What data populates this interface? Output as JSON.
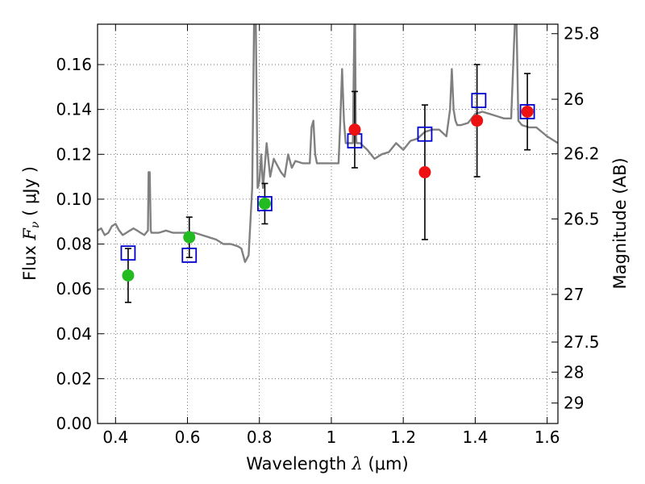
{
  "chart_data": {
    "type": "scatter",
    "xlabel": {
      "prefix": "Wavelength  ",
      "symbol": "λ",
      "unit": " (μm)"
    },
    "ylabel": {
      "prefix": "Flux  ",
      "symbol": "F",
      "subscript": "ν",
      "unit": "  ( μJy )"
    },
    "y2label": "Magnitude (AB)",
    "xlim": [
      0.35,
      1.63
    ],
    "ylim": [
      0.0,
      0.178
    ],
    "grid": true,
    "x_ticks": [
      {
        "value": 0.4,
        "label": "0.4"
      },
      {
        "value": 0.6,
        "label": "0.6"
      },
      {
        "value": 0.8,
        "label": "0.8"
      },
      {
        "value": 1.0,
        "label": "1"
      },
      {
        "value": 1.2,
        "label": "1.2"
      },
      {
        "value": 1.4,
        "label": "1.4"
      },
      {
        "value": 1.6,
        "label": "1.6"
      }
    ],
    "y_ticks": [
      {
        "value": 0.0,
        "label": "0.00"
      },
      {
        "value": 0.02,
        "label": "0.02"
      },
      {
        "value": 0.04,
        "label": "0.04"
      },
      {
        "value": 0.06,
        "label": "0.06"
      },
      {
        "value": 0.08,
        "label": "0.08"
      },
      {
        "value": 0.1,
        "label": "0.10"
      },
      {
        "value": 0.12,
        "label": "0.12"
      },
      {
        "value": 0.14,
        "label": "0.14"
      },
      {
        "value": 0.16,
        "label": "0.16"
      }
    ],
    "y2_ticks": [
      {
        "mag": 25.8,
        "label": "25.8"
      },
      {
        "mag": 26,
        "label": "26"
      },
      {
        "mag": 26.2,
        "label": "26.2"
      },
      {
        "mag": 26.5,
        "label": "26.5"
      },
      {
        "mag": 27,
        "label": "27"
      },
      {
        "mag": 27.5,
        "label": "27.5"
      },
      {
        "mag": 28,
        "label": "28"
      },
      {
        "mag": 29,
        "label": "29"
      }
    ],
    "series": [
      {
        "kind": "line",
        "color": "#808080",
        "x": [
          0.35,
          0.36,
          0.37,
          0.38,
          0.39,
          0.4,
          0.41,
          0.42,
          0.43,
          0.44,
          0.45,
          0.46,
          0.47,
          0.48,
          0.49,
          0.492,
          0.495,
          0.498,
          0.5,
          0.52,
          0.54,
          0.56,
          0.58,
          0.6,
          0.62,
          0.64,
          0.66,
          0.68,
          0.7,
          0.72,
          0.74,
          0.75,
          0.76,
          0.77,
          0.775,
          0.78,
          0.785,
          0.79,
          0.795,
          0.8,
          0.805,
          0.81,
          0.82,
          0.83,
          0.84,
          0.85,
          0.86,
          0.87,
          0.88,
          0.89,
          0.9,
          0.92,
          0.94,
          0.945,
          0.95,
          0.955,
          0.96,
          0.98,
          1.0,
          1.02,
          1.025,
          1.03,
          1.035,
          1.04,
          1.06,
          1.064,
          1.066,
          1.068,
          1.07,
          1.08,
          1.1,
          1.12,
          1.14,
          1.16,
          1.18,
          1.2,
          1.22,
          1.24,
          1.26,
          1.28,
          1.3,
          1.32,
          1.33,
          1.335,
          1.34,
          1.345,
          1.35,
          1.36,
          1.38,
          1.4,
          1.42,
          1.44,
          1.46,
          1.48,
          1.5,
          1.51,
          1.515,
          1.52,
          1.53,
          1.55,
          1.57,
          1.6,
          1.63
        ],
        "y": [
          0.086,
          0.087,
          0.084,
          0.085,
          0.088,
          0.089,
          0.086,
          0.084,
          0.085,
          0.086,
          0.087,
          0.086,
          0.085,
          0.084,
          0.086,
          0.112,
          0.112,
          0.086,
          0.085,
          0.085,
          0.086,
          0.085,
          0.085,
          0.085,
          0.085,
          0.084,
          0.083,
          0.082,
          0.08,
          0.08,
          0.079,
          0.078,
          0.072,
          0.075,
          0.09,
          0.105,
          0.178,
          0.178,
          0.105,
          0.108,
          0.12,
          0.105,
          0.125,
          0.11,
          0.118,
          0.115,
          0.112,
          0.11,
          0.12,
          0.114,
          0.117,
          0.116,
          0.116,
          0.132,
          0.135,
          0.12,
          0.116,
          0.116,
          0.116,
          0.116,
          0.135,
          0.158,
          0.135,
          0.125,
          0.125,
          0.178,
          0.178,
          0.13,
          0.125,
          0.125,
          0.122,
          0.118,
          0.12,
          0.121,
          0.125,
          0.122,
          0.126,
          0.127,
          0.13,
          0.131,
          0.131,
          0.128,
          0.14,
          0.158,
          0.14,
          0.135,
          0.133,
          0.133,
          0.134,
          0.138,
          0.139,
          0.138,
          0.137,
          0.136,
          0.136,
          0.178,
          0.178,
          0.135,
          0.133,
          0.132,
          0.132,
          0.128,
          0.125
        ]
      },
      {
        "kind": "squares",
        "color": "#0000cc",
        "x": [
          0.435,
          0.605,
          0.815,
          1.065,
          1.26,
          1.41,
          1.545
        ],
        "y": [
          0.076,
          0.075,
          0.098,
          0.126,
          0.129,
          0.144,
          0.139
        ]
      },
      {
        "kind": "points",
        "color": "#22bb22",
        "x": [
          0.435,
          0.605,
          0.815
        ],
        "y": [
          0.066,
          0.083,
          0.098
        ],
        "err": [
          0.012,
          0.009,
          0.009
        ]
      },
      {
        "kind": "points",
        "color": "#ee1111",
        "x": [
          1.065,
          1.26,
          1.405,
          1.545
        ],
        "y": [
          0.131,
          0.112,
          0.135,
          0.139
        ],
        "err": [
          0.017,
          0.03,
          0.025,
          0.017
        ]
      }
    ]
  }
}
